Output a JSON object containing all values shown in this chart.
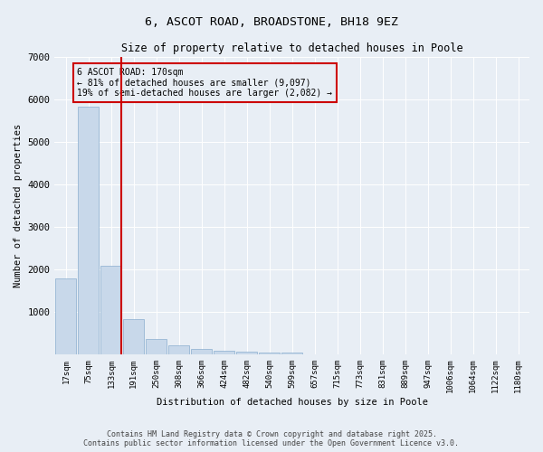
{
  "title": "6, ASCOT ROAD, BROADSTONE, BH18 9EZ",
  "subtitle": "Size of property relative to detached houses in Poole",
  "xlabel": "Distribution of detached houses by size in Poole",
  "ylabel": "Number of detached properties",
  "footer_line1": "Contains HM Land Registry data © Crown copyright and database right 2025.",
  "footer_line2": "Contains public sector information licensed under the Open Government Licence v3.0.",
  "categories": [
    "17sqm",
    "75sqm",
    "133sqm",
    "191sqm",
    "250sqm",
    "308sqm",
    "366sqm",
    "424sqm",
    "482sqm",
    "540sqm",
    "599sqm",
    "657sqm",
    "715sqm",
    "773sqm",
    "831sqm",
    "889sqm",
    "947sqm",
    "1006sqm",
    "1064sqm",
    "1122sqm",
    "1180sqm"
  ],
  "values": [
    1780,
    5820,
    2090,
    820,
    360,
    210,
    120,
    90,
    70,
    50,
    40,
    0,
    0,
    0,
    0,
    0,
    0,
    0,
    0,
    0,
    0
  ],
  "bar_color": "#c8d8ea",
  "bar_edge_color": "#8aaece",
  "vline_index": 2,
  "vline_color": "#cc0000",
  "annotation_title": "6 ASCOT ROAD: 170sqm",
  "annotation_line1": "← 81% of detached houses are smaller (9,097)",
  "annotation_line2": "19% of semi-detached houses are larger (2,082) →",
  "annotation_box_edge_color": "#cc0000",
  "ylim": [
    0,
    7000
  ],
  "yticks": [
    0,
    1000,
    2000,
    3000,
    4000,
    5000,
    6000,
    7000
  ],
  "background_color": "#e8eef5",
  "plot_bg_color": "#e8eef5",
  "grid_color": "#ffffff"
}
